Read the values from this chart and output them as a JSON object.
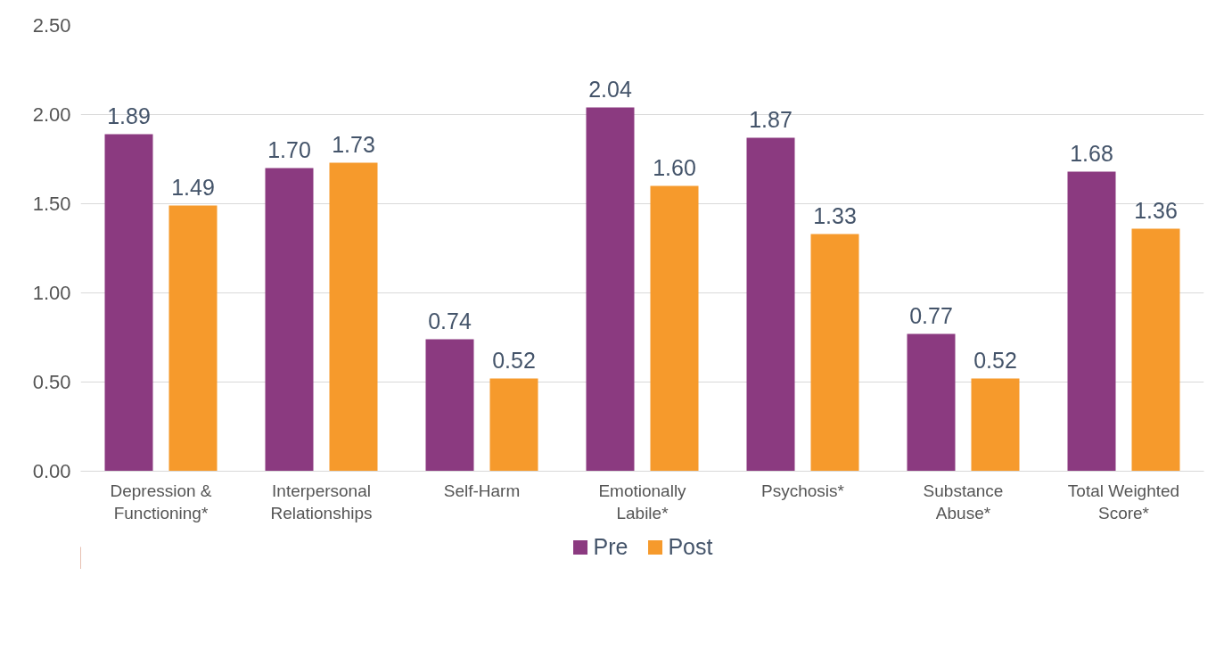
{
  "chart_data": {
    "type": "bar",
    "categories": [
      "Depression &\nFunctioning*",
      "Interpersonal\nRelationships",
      "Self-Harm",
      "Emotionally\nLabile*",
      "Psychosis*",
      "Substance\nAbuse*",
      "Total Weighted\nScore*"
    ],
    "series": [
      {
        "name": "Pre",
        "color": "#8b3a80",
        "values": [
          1.89,
          1.7,
          0.74,
          2.04,
          1.87,
          0.77,
          1.68
        ],
        "value_labels": [
          "1.89",
          "1.70",
          "0.74",
          "2.04",
          "1.87",
          "0.77",
          "1.68"
        ]
      },
      {
        "name": "Post",
        "color": "#f69a2c",
        "values": [
          1.49,
          1.73,
          0.52,
          1.6,
          1.33,
          0.52,
          1.36
        ],
        "value_labels": [
          "1.49",
          "1.73",
          "0.52",
          "1.60",
          "1.33",
          "0.52",
          "1.36"
        ]
      }
    ],
    "ylim": [
      0,
      2.5
    ],
    "yticks": [
      {
        "value": 0,
        "label": "0.00"
      },
      {
        "value": 0.5,
        "label": "0.50"
      },
      {
        "value": 1,
        "label": "1.00"
      },
      {
        "value": 1.5,
        "label": "1.50"
      },
      {
        "value": 2,
        "label": "2.00"
      },
      {
        "value": 2.5,
        "label": "2.50"
      }
    ],
    "grid": "y",
    "legend": "bottom"
  }
}
